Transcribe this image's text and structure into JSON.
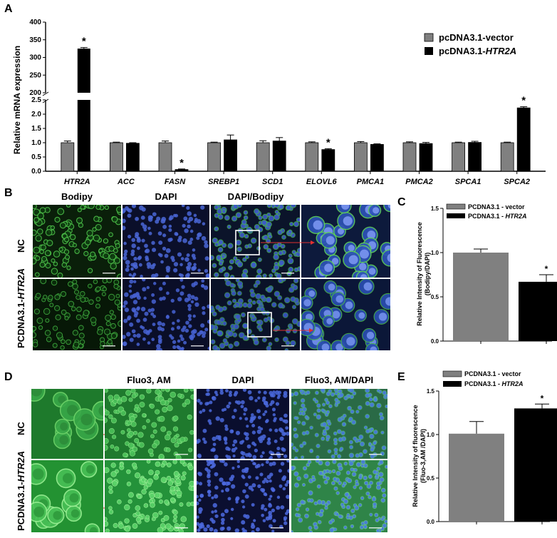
{
  "panel_letters": {
    "a": "A",
    "b": "B",
    "c": "C",
    "d": "D",
    "e": "E"
  },
  "panel_a": {
    "ylabel": "Relative mRNA expression",
    "legend": [
      "pcDNA3.1-vector",
      "pcDNA3.1-"
    ],
    "legend_gene": "HTR2A",
    "star": "*"
  },
  "panel_b": {
    "columns": [
      "Bodipy",
      "DAPI",
      "DAPI/Bodipy"
    ],
    "rows": [
      "NC",
      "PCDNA3.1-"
    ],
    "row_gene": "HTR2A"
  },
  "panel_c": {
    "ylabel_line1": "Relative Intensity of Fluorescence",
    "ylabel_line2": "(Bodipy/DAPI)",
    "legend": [
      "PCDNA3.1 - vector",
      "PCDNA3.1 - "
    ],
    "legend_gene": "HTR2A",
    "star": "*"
  },
  "panel_d": {
    "columns": [
      "Fluo3, AM",
      "DAPI",
      "Fluo3, AM/DAPI"
    ],
    "rows": [
      "NC",
      "PCDNA3.1-"
    ],
    "row_gene": "HTR2A"
  },
  "panel_e": {
    "ylabel_line1": "Relative Intensity of fluorescence",
    "ylabel_line2": "(Fluo-3,AM /DAPI)",
    "legend": [
      "PCDNA3.1 - vector",
      "PCDNA3.1 - "
    ],
    "legend_gene": "HTR2A",
    "star": "*"
  },
  "colors": {
    "vector": "#808080",
    "htr2a": "#000000",
    "green": "#3cb43c",
    "blue": "#3c5ad2",
    "arrow": "#e03030"
  },
  "chart_data": [
    {
      "id": "A",
      "type": "bar",
      "categories": [
        "HTR2A",
        "ACC",
        "FASN",
        "SREBP1",
        "SCD1",
        "ELOVL6",
        "PMCA1",
        "PMCA2",
        "SPCA1",
        "SPCA2"
      ],
      "series": [
        {
          "name": "pcDNA3.1-vector",
          "values": [
            1.0,
            1.0,
            1.0,
            1.0,
            1.0,
            1.0,
            1.0,
            1.0,
            1.0,
            1.0
          ],
          "errors": [
            0.06,
            0.02,
            0.06,
            0.02,
            0.07,
            0.03,
            0.04,
            0.03,
            0.02,
            0.02
          ]
        },
        {
          "name": "pcDNA3.1-HTR2A",
          "values": [
            325,
            0.98,
            0.06,
            1.1,
            1.06,
            0.76,
            0.94,
            0.97,
            1.01,
            2.22
          ],
          "errors": [
            3,
            0.02,
            0.02,
            0.17,
            0.12,
            0.03,
            0.02,
            0.04,
            0.04,
            0.04
          ]
        }
      ],
      "significant": [
        0,
        2,
        5,
        9
      ],
      "y_broken_axis": {
        "lower": [
          0,
          2.5
        ],
        "upper": [
          200,
          400
        ]
      },
      "yticks_lower": [
        "0.0",
        "0.5",
        "1.0",
        "1.5",
        "2.0",
        "2.5"
      ],
      "yticks_upper": [
        "200",
        "250",
        "300",
        "350",
        "400"
      ],
      "ylabel": "Relative mRNA expression",
      "legend_position": "top-right"
    },
    {
      "id": "C",
      "type": "bar",
      "categories": [
        "PCDNA3.1 - vector",
        "PCDNA3.1 - HTR2A"
      ],
      "values": [
        1.0,
        0.67
      ],
      "errors": [
        0.04,
        0.08
      ],
      "significant": [
        1
      ],
      "ylim": [
        0,
        1.5
      ],
      "yticks": [
        "0.0",
        "0.5",
        "1.0",
        "1.5"
      ],
      "legend_position": "top-left"
    },
    {
      "id": "E",
      "type": "bar",
      "categories": [
        "PCDNA3.1 - vector",
        "PCDNA3.1 - HTR2A"
      ],
      "values": [
        1.01,
        1.3
      ],
      "errors": [
        0.14,
        0.05
      ],
      "significant": [
        1
      ],
      "ylim": [
        0,
        1.5
      ],
      "yticks": [
        "0.0",
        "0.5",
        "1.0",
        "1.5"
      ],
      "legend_position": "top-left"
    }
  ]
}
